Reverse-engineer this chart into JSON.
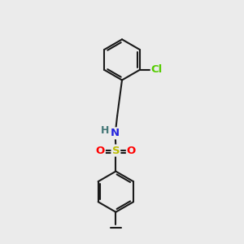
{
  "background_color": "#ebebeb",
  "bond_color": "#1a1a1a",
  "bond_width": 1.5,
  "atoms": {
    "Cl": {
      "color": "#55cc00",
      "fontsize": 9.5
    },
    "N": {
      "color": "#2222dd",
      "fontsize": 9.5
    },
    "S": {
      "color": "#bbbb00",
      "fontsize": 9.5
    },
    "O": {
      "color": "#ff0000",
      "fontsize": 9.5
    },
    "H": {
      "color": "#447777",
      "fontsize": 9.0
    }
  },
  "figsize": [
    3.0,
    3.0
  ],
  "dpi": 100
}
